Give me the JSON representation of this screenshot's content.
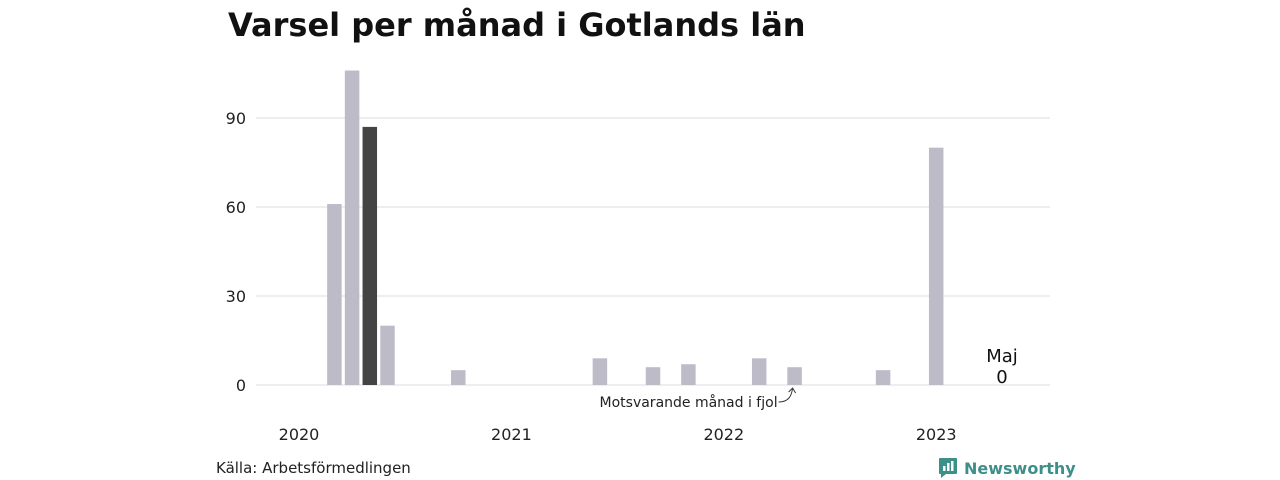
{
  "chart_data": {
    "type": "bar",
    "title": "Varsel per månad i Gotlands län",
    "xlabel": "",
    "ylabel": "",
    "ylim": [
      0,
      105
    ],
    "yticks": [
      0,
      30,
      60,
      90
    ],
    "year_labels": [
      "2020",
      "2021",
      "2022",
      "2023"
    ],
    "months": [
      "2020-01",
      "2020-02",
      "2020-03",
      "2020-04",
      "2020-05",
      "2020-06",
      "2020-07",
      "2020-08",
      "2020-09",
      "2020-10",
      "2020-11",
      "2020-12",
      "2021-01",
      "2021-02",
      "2021-03",
      "2021-04",
      "2021-05",
      "2021-06",
      "2021-07",
      "2021-08",
      "2021-09",
      "2021-10",
      "2021-11",
      "2021-12",
      "2022-01",
      "2022-02",
      "2022-03",
      "2022-04",
      "2022-05",
      "2022-06",
      "2022-07",
      "2022-08",
      "2022-09",
      "2022-10",
      "2022-11",
      "2022-12",
      "2023-01",
      "2023-02",
      "2023-03",
      "2023-04",
      "2023-05"
    ],
    "values": [
      0,
      0,
      61,
      106,
      87,
      20,
      0,
      0,
      0,
      5,
      0,
      0,
      0,
      0,
      0,
      0,
      0,
      9,
      0,
      0,
      6,
      0,
      7,
      0,
      0,
      0,
      9,
      0,
      6,
      0,
      0,
      0,
      0,
      5,
      0,
      0,
      80,
      0,
      0,
      0,
      0
    ],
    "highlight_month": "2020-05",
    "grid": true,
    "colors": {
      "bar": "#bebbc9",
      "highlight": "#444444",
      "grid": "#dcdcdc"
    },
    "annotation": {
      "text": "Motsvarande månad i fjol",
      "target_month": "2022-05"
    },
    "last_value": {
      "month_label": "Maj",
      "value": "0"
    }
  },
  "source": "Källa: Arbetsförmedlingen",
  "logo": {
    "text": "Newsworthy",
    "icon": "bar-chart-bubble-icon",
    "color": "#3d8f8a"
  }
}
